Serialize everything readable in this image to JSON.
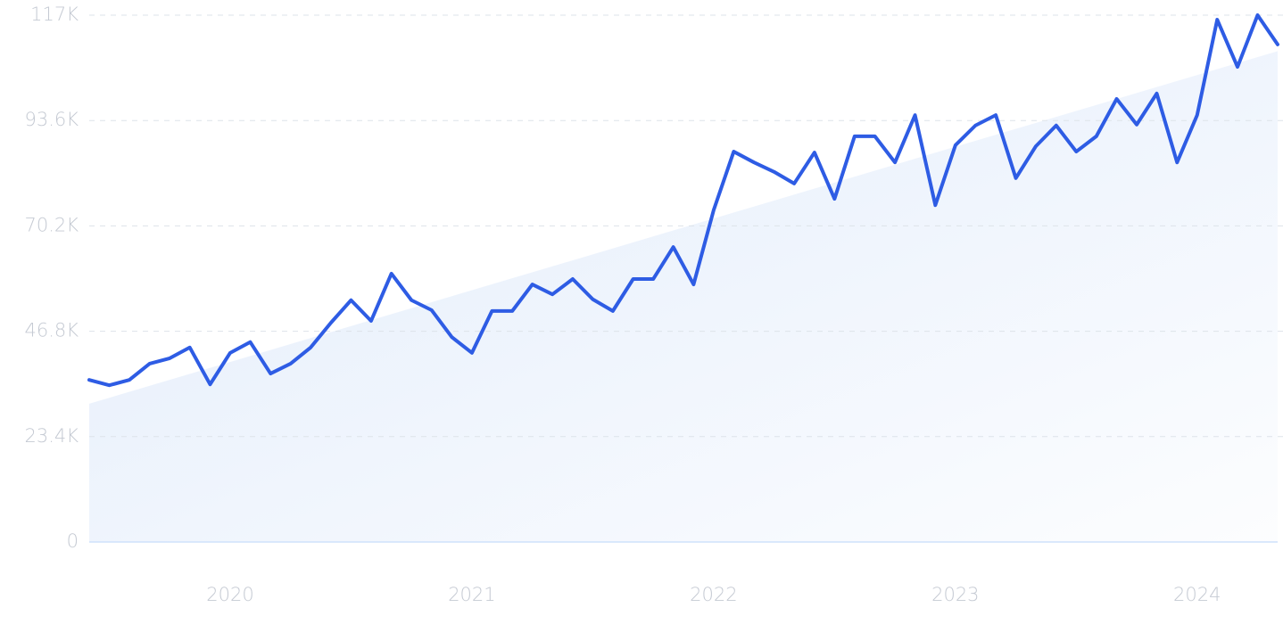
{
  "chart_data": {
    "type": "line",
    "x": [
      2019.417,
      2019.5,
      2019.583,
      2019.667,
      2019.75,
      2019.833,
      2019.917,
      2020.0,
      2020.083,
      2020.167,
      2020.25,
      2020.333,
      2020.417,
      2020.5,
      2020.583,
      2020.667,
      2020.75,
      2020.833,
      2020.917,
      2021.0,
      2021.083,
      2021.167,
      2021.25,
      2021.333,
      2021.417,
      2021.5,
      2021.583,
      2021.667,
      2021.75,
      2021.833,
      2021.917,
      2022.0,
      2022.083,
      2022.167,
      2022.25,
      2022.333,
      2022.417,
      2022.5,
      2022.583,
      2022.667,
      2022.75,
      2022.833,
      2022.917,
      2023.0,
      2023.083,
      2023.167,
      2023.25,
      2023.333,
      2023.417,
      2023.5,
      2023.583,
      2023.667,
      2023.75,
      2023.833,
      2023.917,
      2024.0,
      2024.083,
      2024.167,
      2024.25,
      2024.333
    ],
    "series": [
      {
        "color": "#2e5ce4",
        "values": [
          36000,
          34800,
          36000,
          39600,
          40800,
          43200,
          35000,
          42000,
          44400,
          37400,
          39600,
          43200,
          48700,
          53700,
          49100,
          59600,
          53700,
          51500,
          45500,
          42000,
          51300,
          51300,
          57200,
          55000,
          58400,
          53900,
          51300,
          58400,
          58400,
          65500,
          57200,
          73700,
          86700,
          84300,
          82200,
          79600,
          86500,
          76200,
          90100,
          90100,
          84300,
          94800,
          74800,
          88100,
          92500,
          94800,
          80800,
          87900,
          92500,
          86700,
          90100,
          98400,
          92700,
          99600,
          84300,
          94800,
          116000,
          105500,
          117000,
          110500
        ]
      }
    ],
    "trend": {
      "x": [
        2019.417,
        2024.333
      ],
      "values": [
        30700,
        109000
      ],
      "color": "#e2ecfb"
    },
    "xlim": [
      2019.417,
      2024.333
    ],
    "xticks": [
      2020,
      2021,
      2022,
      2023,
      2024
    ],
    "ylim": [
      0,
      117000
    ],
    "yticks": [
      0,
      {
        "value": 23400,
        "label": "23.4K"
      },
      {
        "value": 46800,
        "label": "46.8K"
      },
      {
        "value": 70200,
        "label": "70.2K"
      },
      {
        "value": 93600,
        "label": "93.6K"
      },
      {
        "value": 117000,
        "label": "117K"
      }
    ],
    "grid": true
  }
}
